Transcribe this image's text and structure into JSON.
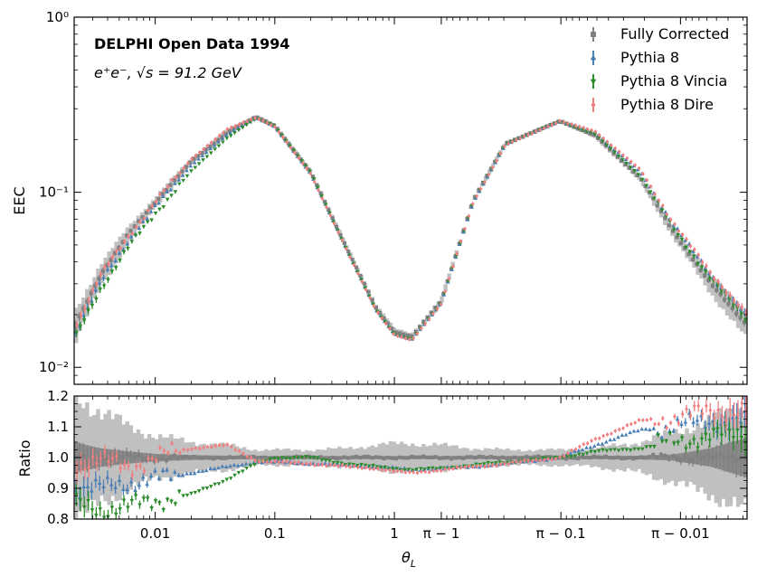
{
  "chart_data": {
    "type": "scatter",
    "annotation": {
      "title": "DELPHI Open Data 1994",
      "subtitle": "e⁺e⁻, √s = 91.2 GeV"
    },
    "x_axis": {
      "label": "θ_L",
      "label_main": "θ",
      "label_sub": "L",
      "scale": "symmetric-log about π/2",
      "range": [
        0.0021,
        3.1395
      ],
      "tick_labels": [
        "0.01",
        "0.1",
        "1",
        "π − 1",
        "π − 0.1",
        "π − 0.01"
      ],
      "tick_values": [
        0.01,
        0.1,
        1,
        2.14159,
        3.04159,
        3.13159
      ]
    },
    "panels": [
      {
        "name": "main",
        "ylabel": "EEC",
        "yscale": "log",
        "ylim": [
          0.008,
          1.0
        ],
        "tick_labels": [
          "10⁻²",
          "10⁻¹",
          "10⁰"
        ],
        "tick_values": [
          0.01,
          0.1,
          1.0
        ]
      },
      {
        "name": "ratio",
        "ylabel": "Ratio",
        "yscale": "linear",
        "ylim": [
          0.8,
          1.2
        ],
        "tick_labels": [
          "0.8",
          "0.9",
          "1.0",
          "1.1",
          "1.2"
        ],
        "tick_values": [
          0.8,
          0.9,
          1.0,
          1.1,
          1.2
        ]
      }
    ],
    "legend": {
      "placement": "top-right",
      "entries": [
        "Fully Corrected",
        "Pythia 8",
        "Pythia 8 Vincia",
        "Pythia 8 Dire"
      ]
    },
    "x_anchor": [
      0.0021,
      0.0035,
      0.006,
      0.01,
      0.02,
      0.04,
      0.07,
      0.1,
      0.2,
      0.4,
      0.7,
      1.0,
      1.4,
      2.14,
      2.6,
      2.85,
      3.04,
      3.09,
      3.12,
      3.13,
      3.136,
      3.1395
    ],
    "series": [
      {
        "name": "Fully Corrected",
        "color": "#808080",
        "marker": "square",
        "values": [
          0.017,
          0.034,
          0.058,
          0.088,
          0.15,
          0.22,
          0.27,
          0.24,
          0.13,
          0.048,
          0.022,
          0.016,
          0.015,
          0.024,
          0.09,
          0.19,
          0.255,
          0.21,
          0.12,
          0.06,
          0.03,
          0.014
        ],
        "ratio": [
          1.0,
          1.0,
          1.0,
          1.0,
          1.0,
          1.0,
          1.0,
          1.0,
          1.0,
          1.0,
          1.0,
          1.0,
          1.0,
          1.0,
          1.0,
          1.0,
          1.0,
          1.0,
          1.0,
          1.0,
          1.0,
          1.0
        ],
        "stat_unc": [
          0.05,
          0.03,
          0.02,
          0.012,
          0.008,
          0.006,
          0.005,
          0.005,
          0.005,
          0.005,
          0.005,
          0.005,
          0.005,
          0.005,
          0.005,
          0.005,
          0.005,
          0.005,
          0.006,
          0.01,
          0.03,
          0.08
        ],
        "syst_unc": [
          0.2,
          0.15,
          0.1,
          0.07,
          0.05,
          0.04,
          0.025,
          0.025,
          0.025,
          0.03,
          0.04,
          0.045,
          0.045,
          0.04,
          0.03,
          0.025,
          0.025,
          0.03,
          0.05,
          0.08,
          0.12,
          0.2
        ]
      },
      {
        "name": "Pythia 8",
        "color": "#4a7fb5",
        "marker": "triangle-up",
        "ratio": [
          0.9,
          0.9,
          0.92,
          0.93,
          0.95,
          0.97,
          0.985,
          0.985,
          0.98,
          0.975,
          0.97,
          0.965,
          0.96,
          0.965,
          0.97,
          0.98,
          1.0,
          1.04,
          1.09,
          1.1,
          1.12,
          1.12
        ]
      },
      {
        "name": "Pythia 8 Vincia",
        "color": "#2a8b2a",
        "marker": "triangle-down",
        "ratio": [
          0.85,
          0.83,
          0.84,
          0.86,
          0.88,
          0.93,
          0.98,
          1.0,
          1.0,
          0.98,
          0.97,
          0.965,
          0.96,
          0.965,
          0.975,
          0.985,
          1.0,
          1.02,
          1.03,
          1.05,
          1.07,
          1.08
        ]
      },
      {
        "name": "Pythia 8 Dire",
        "color": "#f08080",
        "marker": "diamond",
        "ratio": [
          0.98,
          0.99,
          0.97,
          1.0,
          1.03,
          1.04,
          0.99,
          0.985,
          0.98,
          0.97,
          0.965,
          0.955,
          0.95,
          0.96,
          0.97,
          0.98,
          1.0,
          1.06,
          1.12,
          1.13,
          1.15,
          1.16
        ]
      }
    ]
  }
}
